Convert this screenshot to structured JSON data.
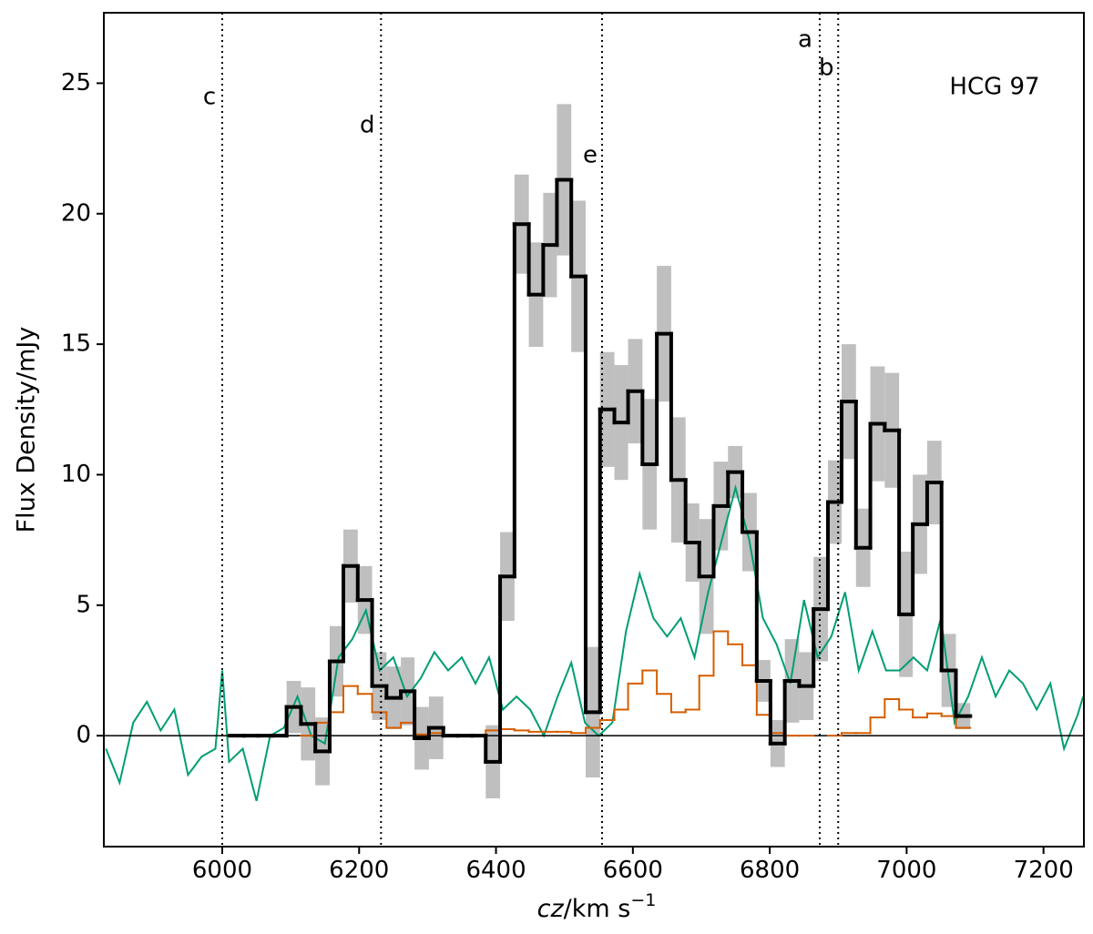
{
  "chart_data": {
    "type": "histogram",
    "ylabel": "Flux Density/mJy",
    "xlabel": [
      "cz",
      "/km s",
      "−1"
    ],
    "annotation": "HCG 97",
    "xlim": [
      5827,
      7259
    ],
    "ylim": [
      -4.25,
      27.7
    ],
    "xticks": [
      6000,
      6200,
      6400,
      6600,
      6800,
      7000,
      7200
    ],
    "yticks": [
      0,
      5,
      10,
      15,
      20,
      25
    ],
    "hline": 0,
    "markers": [
      {
        "label": "c",
        "x": 6000
      },
      {
        "label": "d",
        "x": 6232
      },
      {
        "label": "e",
        "x": 6555
      },
      {
        "label": "a",
        "x": 6873
      },
      {
        "label": "b",
        "x": 6900
      }
    ],
    "bins": [
      6011,
      6032,
      6053,
      6073,
      6094,
      6115,
      6136,
      6157,
      6177,
      6198,
      6219,
      6240,
      6261,
      6281,
      6302,
      6323,
      6344,
      6365,
      6385,
      6406,
      6427,
      6448,
      6469,
      6489,
      6510,
      6531,
      6552,
      6573,
      6593,
      6614,
      6635,
      6656,
      6677,
      6697,
      6718,
      6739,
      6760,
      6781,
      6801,
      6822,
      6843,
      6864,
      6885,
      6905,
      6926,
      6947,
      6968,
      6989,
      7009,
      7030,
      7051,
      7072,
      7093
    ],
    "series": [
      {
        "color": "#000000",
        "error_color": "#bfbfbf",
        "values": [
          0,
          0,
          0,
          0,
          1.1,
          0.45,
          -0.6,
          2.85,
          6.5,
          5.2,
          1.9,
          1.45,
          1.7,
          -0.1,
          0.3,
          0,
          0,
          0,
          -1.0,
          6.1,
          19.6,
          16.9,
          18.8,
          21.3,
          17.6,
          0.9,
          12.5,
          12.0,
          13.2,
          10.4,
          15.4,
          9.8,
          7.4,
          6.1,
          8.8,
          10.1,
          7.8,
          2.1,
          -0.3,
          2.1,
          1.9,
          4.85,
          8.95,
          12.8,
          7.2,
          11.95,
          11.7,
          4.65,
          8.1,
          9.7,
          2.5,
          0.75
        ],
        "errors": [
          null,
          null,
          null,
          null,
          1.0,
          1.4,
          1.3,
          1.35,
          1.4,
          1.3,
          1.3,
          1.2,
          1.3,
          1.2,
          1.2,
          null,
          null,
          null,
          1.4,
          1.7,
          1.9,
          2.0,
          2.0,
          2.9,
          2.9,
          2.5,
          2.2,
          2.2,
          2.0,
          2.5,
          2.6,
          2.4,
          1.5,
          2.2,
          1.7,
          1.0,
          1.5,
          0.8,
          0.9,
          1.6,
          1.3,
          2.0,
          1.6,
          2.2,
          1.5,
          2.2,
          2.2,
          2.4,
          1.9,
          1.6,
          1.4,
          0.5
        ]
      },
      {
        "color": "#d55e00",
        "values": [
          null,
          null,
          null,
          null,
          null,
          0.0,
          0.5,
          0.9,
          1.9,
          1.6,
          0.9,
          0.3,
          0.5,
          0.05,
          0.1,
          0.0,
          0.0,
          0.0,
          0.2,
          0.25,
          0.2,
          0.15,
          0.15,
          0.15,
          0.1,
          0.3,
          0.6,
          1.0,
          2.0,
          2.5,
          1.6,
          0.9,
          1.0,
          2.3,
          4.0,
          3.5,
          2.7,
          0.8,
          0.1,
          0.0,
          0.0,
          null,
          0.0,
          0.1,
          0.1,
          0.7,
          1.4,
          1.0,
          0.7,
          0.85,
          0.75,
          0.3
        ]
      },
      {
        "color": "#009e73",
        "x": [
          5830,
          5850,
          5870,
          5890,
          5910,
          5930,
          5950,
          5970,
          5990,
          6000,
          6010,
          6030,
          6050,
          6070,
          6090,
          6110,
          6130,
          6150,
          6170,
          6190,
          6210,
          6230,
          6250,
          6270,
          6290,
          6310,
          6330,
          6350,
          6370,
          6390,
          6410,
          6430,
          6450,
          6470,
          6490,
          6510,
          6530,
          6550,
          6570,
          6590,
          6610,
          6630,
          6650,
          6670,
          6690,
          6710,
          6730,
          6750,
          6770,
          6790,
          6810,
          6830,
          6850,
          6870,
          6890,
          6910,
          6930,
          6950,
          6970,
          6990,
          7010,
          7030,
          7050,
          7070,
          7090,
          7110,
          7130,
          7150,
          7170,
          7190,
          7210,
          7230,
          7250,
          7258
        ],
        "values": [
          -0.5,
          -1.8,
          0.5,
          1.3,
          0.2,
          1.0,
          -1.5,
          -0.8,
          -0.5,
          2.5,
          -1.0,
          -0.5,
          -2.5,
          0.0,
          0.3,
          1.5,
          0.0,
          -0.3,
          3.0,
          3.7,
          4.8,
          2.5,
          3.0,
          1.5,
          2.2,
          3.2,
          2.5,
          3.0,
          2.0,
          3.0,
          1.0,
          1.5,
          1.0,
          0.0,
          1.5,
          2.8,
          0.5,
          0.0,
          0.5,
          4.0,
          6.2,
          4.5,
          3.8,
          4.5,
          3.0,
          5.5,
          7.5,
          9.5,
          7.5,
          4.5,
          3.5,
          2.0,
          5.2,
          3.0,
          3.8,
          5.5,
          2.5,
          4.0,
          2.5,
          2.5,
          3.0,
          2.5,
          4.5,
          0.5,
          1.5,
          3.0,
          1.5,
          2.5,
          2.0,
          1.0,
          2.0,
          -0.5,
          0.8,
          1.5
        ]
      }
    ]
  }
}
